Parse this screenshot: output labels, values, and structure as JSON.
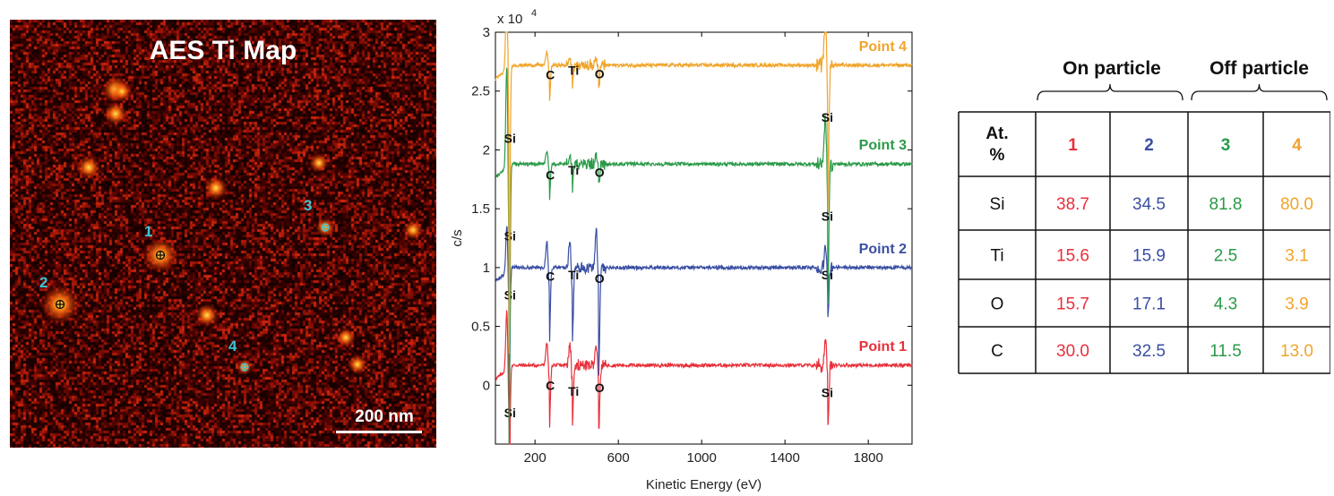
{
  "map": {
    "title": "AES Ti Map",
    "scale_bar_label": "200 nm",
    "points": [
      {
        "label": "1",
        "color": "#3fc4d4"
      },
      {
        "label": "2",
        "color": "#3fc4d4"
      },
      {
        "label": "3",
        "color": "#3fc4d4"
      },
      {
        "label": "4",
        "color": "#3fc4d4"
      }
    ]
  },
  "chart_data": {
    "type": "line",
    "xlabel": "Kinetic Energy (eV)",
    "ylabel": "c/s",
    "y_multiplier": "x 10",
    "y_exponent": "4",
    "xlim": [
      10,
      2010
    ],
    "ylim": [
      -0.5,
      3
    ],
    "xticks": [
      200,
      600,
      1000,
      1400,
      1800
    ],
    "yticks": [
      0,
      0.5,
      1,
      1.5,
      2,
      2.5,
      3
    ],
    "ytick_labels": [
      "0",
      "0.5",
      "1",
      "1.5",
      "2",
      "2.5",
      "3"
    ],
    "series": [
      {
        "name": "Point 1",
        "color": "#e8303a",
        "baseline": 0.17,
        "peaks": [
          [
            75,
            -1.5
          ],
          [
            268,
            -0.6
          ],
          [
            378,
            -0.55
          ],
          [
            505,
            -0.6
          ],
          [
            1605,
            -0.6
          ]
        ],
        "peak_labels": [
          {
            "text": "Si",
            "x": 80,
            "y": -0.27
          },
          {
            "text": "C",
            "x": 273,
            "y": -0.04
          },
          {
            "text": "Ti",
            "x": 385,
            "y": -0.09
          },
          {
            "text": "O",
            "x": 510,
            "y": -0.06
          },
          {
            "text": "Si",
            "x": 1603,
            "y": -0.1
          }
        ]
      },
      {
        "name": "Point 2",
        "color": "#3a4fa3",
        "baseline": 1.0,
        "peaks": [
          [
            75,
            -1.2
          ],
          [
            268,
            -0.7
          ],
          [
            378,
            -0.75
          ],
          [
            505,
            -0.95
          ],
          [
            1605,
            -0.5
          ]
        ],
        "peak_labels": [
          {
            "text": "Si",
            "x": 80,
            "y": 0.73
          },
          {
            "text": "C",
            "x": 273,
            "y": 0.89
          },
          {
            "text": "Ti",
            "x": 385,
            "y": 0.9
          },
          {
            "text": "O",
            "x": 510,
            "y": 0.87
          },
          {
            "text": "Si",
            "x": 1603,
            "y": 0.9
          }
        ]
      },
      {
        "name": "Point 3",
        "color": "#2a9a48",
        "baseline": 1.88,
        "peaks": [
          [
            75,
            -2.6
          ],
          [
            268,
            -0.35
          ],
          [
            378,
            -0.25
          ],
          [
            505,
            -0.2
          ],
          [
            1605,
            -1.3
          ]
        ],
        "peak_labels": [
          {
            "text": "Si",
            "x": 80,
            "y": 1.23
          },
          {
            "text": "C",
            "x": 273,
            "y": 1.75
          },
          {
            "text": "Ti",
            "x": 385,
            "y": 1.79
          },
          {
            "text": "O",
            "x": 510,
            "y": 1.77
          },
          {
            "text": "Si",
            "x": 1603,
            "y": 1.4
          }
        ]
      },
      {
        "name": "Point 4",
        "color": "#f0a42a",
        "baseline": 2.72,
        "peaks": [
          [
            75,
            -2.6
          ],
          [
            268,
            -0.35
          ],
          [
            378,
            -0.2
          ],
          [
            505,
            -0.22
          ],
          [
            1605,
            -1.3
          ]
        ],
        "peak_labels": [
          {
            "text": "Si",
            "x": 80,
            "y": 2.06
          },
          {
            "text": "C",
            "x": 273,
            "y": 2.6
          },
          {
            "text": "Ti",
            "x": 385,
            "y": 2.64
          },
          {
            "text": "O",
            "x": 510,
            "y": 2.61
          },
          {
            "text": "Si",
            "x": 1603,
            "y": 2.24
          }
        ]
      }
    ]
  },
  "table": {
    "group_labels": [
      "On particle",
      "Off particle"
    ],
    "header": "At.\n%",
    "columns": [
      {
        "label": "1",
        "color": "#e8303a"
      },
      {
        "label": "2",
        "color": "#3a4fa3"
      },
      {
        "label": "3",
        "color": "#2a9a48"
      },
      {
        "label": "4",
        "color": "#f0a42a"
      }
    ],
    "rows": [
      {
        "element": "Si",
        "values": [
          "38.7",
          "34.5",
          "81.8",
          "80.0"
        ]
      },
      {
        "element": "Ti",
        "values": [
          "15.6",
          "15.9",
          "2.5",
          "3.1"
        ]
      },
      {
        "element": "O",
        "values": [
          "15.7",
          "17.1",
          "4.3",
          "3.9"
        ]
      },
      {
        "element": "C",
        "values": [
          "30.0",
          "32.5",
          "11.5",
          "13.0"
        ]
      }
    ]
  }
}
